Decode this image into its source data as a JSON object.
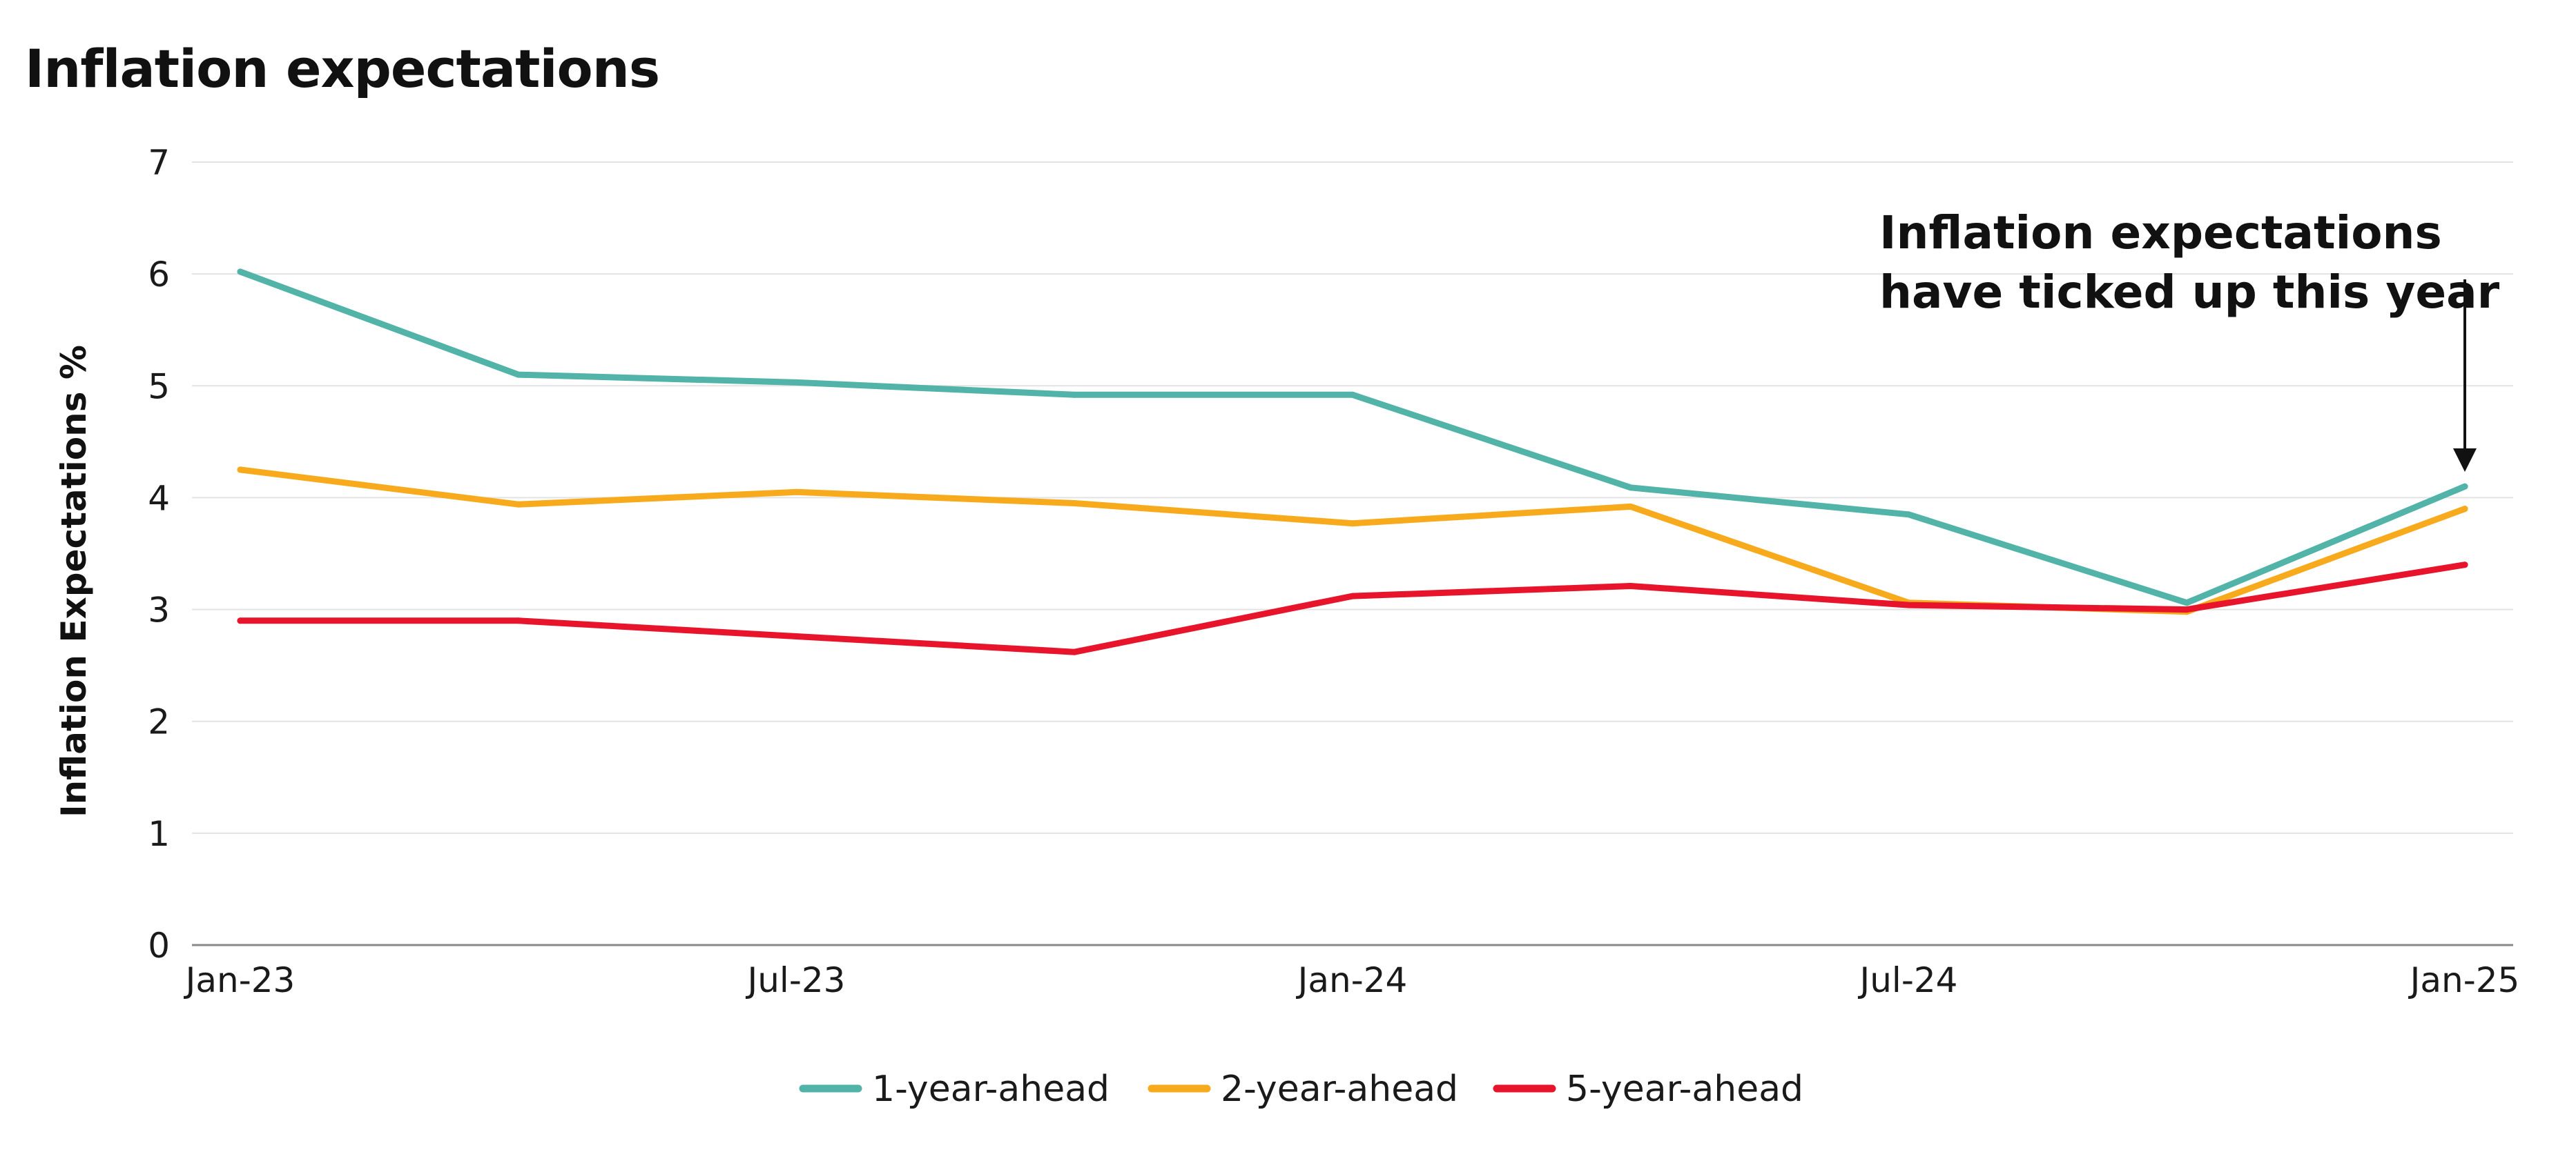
{
  "title": "Inflation expectations",
  "chart_data": {
    "type": "line",
    "title": "Inflation expectations",
    "xlabel": "",
    "ylabel": "Inflation Expectations %",
    "x": [
      "Jan-23",
      "Apr-23",
      "Jul-23",
      "Oct-23",
      "Jan-24",
      "Apr-24",
      "Jul-24",
      "Oct-24",
      "Jan-25"
    ],
    "x_tick_labels": [
      "Jan-23",
      "Jul-23",
      "Jan-24",
      "Jul-24",
      "Jan-25"
    ],
    "y_ticks": [
      0,
      1,
      2,
      3,
      4,
      5,
      6,
      7
    ],
    "ylim": [
      0,
      7
    ],
    "grid": "horizontal",
    "legend_position": "bottom-center",
    "series": [
      {
        "name": "1-year-ahead",
        "color": "#52b3a8",
        "values": [
          6.02,
          5.1,
          5.03,
          4.92,
          4.92,
          4.09,
          3.85,
          3.06,
          4.1
        ]
      },
      {
        "name": "2-year-ahead",
        "color": "#f7aa1c",
        "values": [
          4.25,
          3.94,
          4.05,
          3.95,
          3.77,
          3.92,
          3.06,
          2.98,
          3.9
        ]
      },
      {
        "name": "5-year-ahead",
        "color": "#e8142b",
        "values": [
          2.9,
          2.9,
          2.76,
          2.62,
          3.12,
          3.21,
          3.04,
          3.0,
          3.4
        ]
      }
    ],
    "annotations": [
      {
        "text_lines": [
          "Inflation expectations",
          "have ticked up this year"
        ],
        "x": "Jan-25",
        "y": 4.1
      }
    ]
  }
}
